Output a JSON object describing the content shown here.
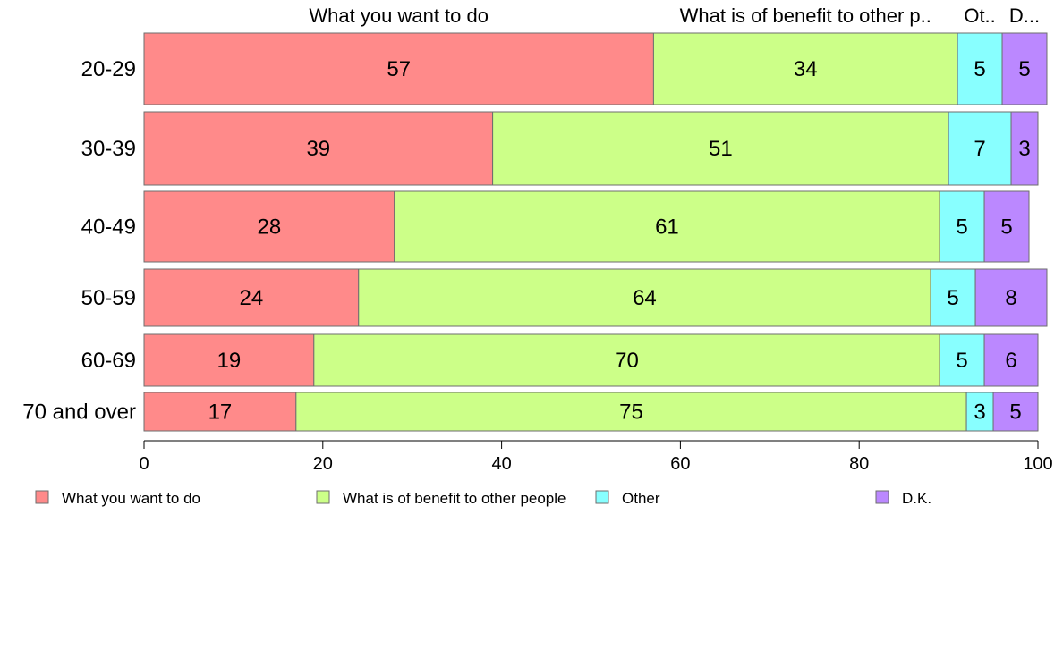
{
  "chart_data": {
    "type": "bar",
    "orientation": "horizontal",
    "stacked": true,
    "categories": [
      "20-29",
      "30-39",
      "40-49",
      "50-59",
      "60-69",
      "70 and over"
    ],
    "series": [
      {
        "name": "What you want to do",
        "color": "#ff8a8a",
        "values": [
          57,
          39,
          28,
          24,
          19,
          17
        ]
      },
      {
        "name": "What is of benefit to other people",
        "color": "#ccff88",
        "values": [
          34,
          51,
          61,
          64,
          70,
          75
        ]
      },
      {
        "name": "Other",
        "color": "#88ffff",
        "values": [
          5,
          7,
          5,
          5,
          5,
          3
        ]
      },
      {
        "name": "D.K.",
        "color": "#bb88ff",
        "values": [
          5,
          3,
          5,
          8,
          6,
          5
        ]
      }
    ],
    "top_labels": [
      "What you want to do",
      "What is of benefit to other p..",
      "Ot..",
      "D..."
    ],
    "xlim": [
      0,
      100
    ],
    "xticks": [
      0,
      20,
      40,
      60,
      80,
      100
    ],
    "legend": "bottom",
    "grid": false
  }
}
